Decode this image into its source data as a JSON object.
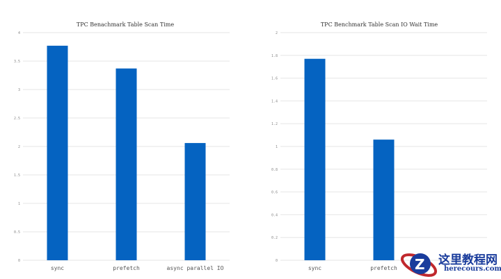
{
  "chart_data": [
    {
      "type": "bar",
      "title": "TPC Benachmark Table Scan Time",
      "categories": [
        "sync",
        "prefetch",
        "async parallel IO"
      ],
      "values": [
        3.77,
        3.37,
        2.06
      ],
      "ylim": [
        0,
        4
      ],
      "yticks": [
        "0",
        "0.5",
        "1",
        "1.5",
        "2",
        "2.5",
        "3",
        "3.5",
        "4"
      ],
      "grid": true,
      "color": "#0563C1"
    },
    {
      "type": "bar",
      "title": "TPC Benchmark Table Scan IO Wait Time",
      "categories": [
        "sync",
        "prefetch"
      ],
      "values": [
        1.77,
        1.06
      ],
      "ylim": [
        0,
        2
      ],
      "yticks": [
        "0",
        "0.2",
        "0.4",
        "0.6",
        "0.8",
        "1",
        "1.2",
        "1.4",
        "1.6",
        "1.8",
        "2"
      ],
      "grid": true,
      "color": "#0563C1"
    }
  ],
  "watermark": {
    "cn": "这里教程网",
    "en": "herecours.com"
  }
}
